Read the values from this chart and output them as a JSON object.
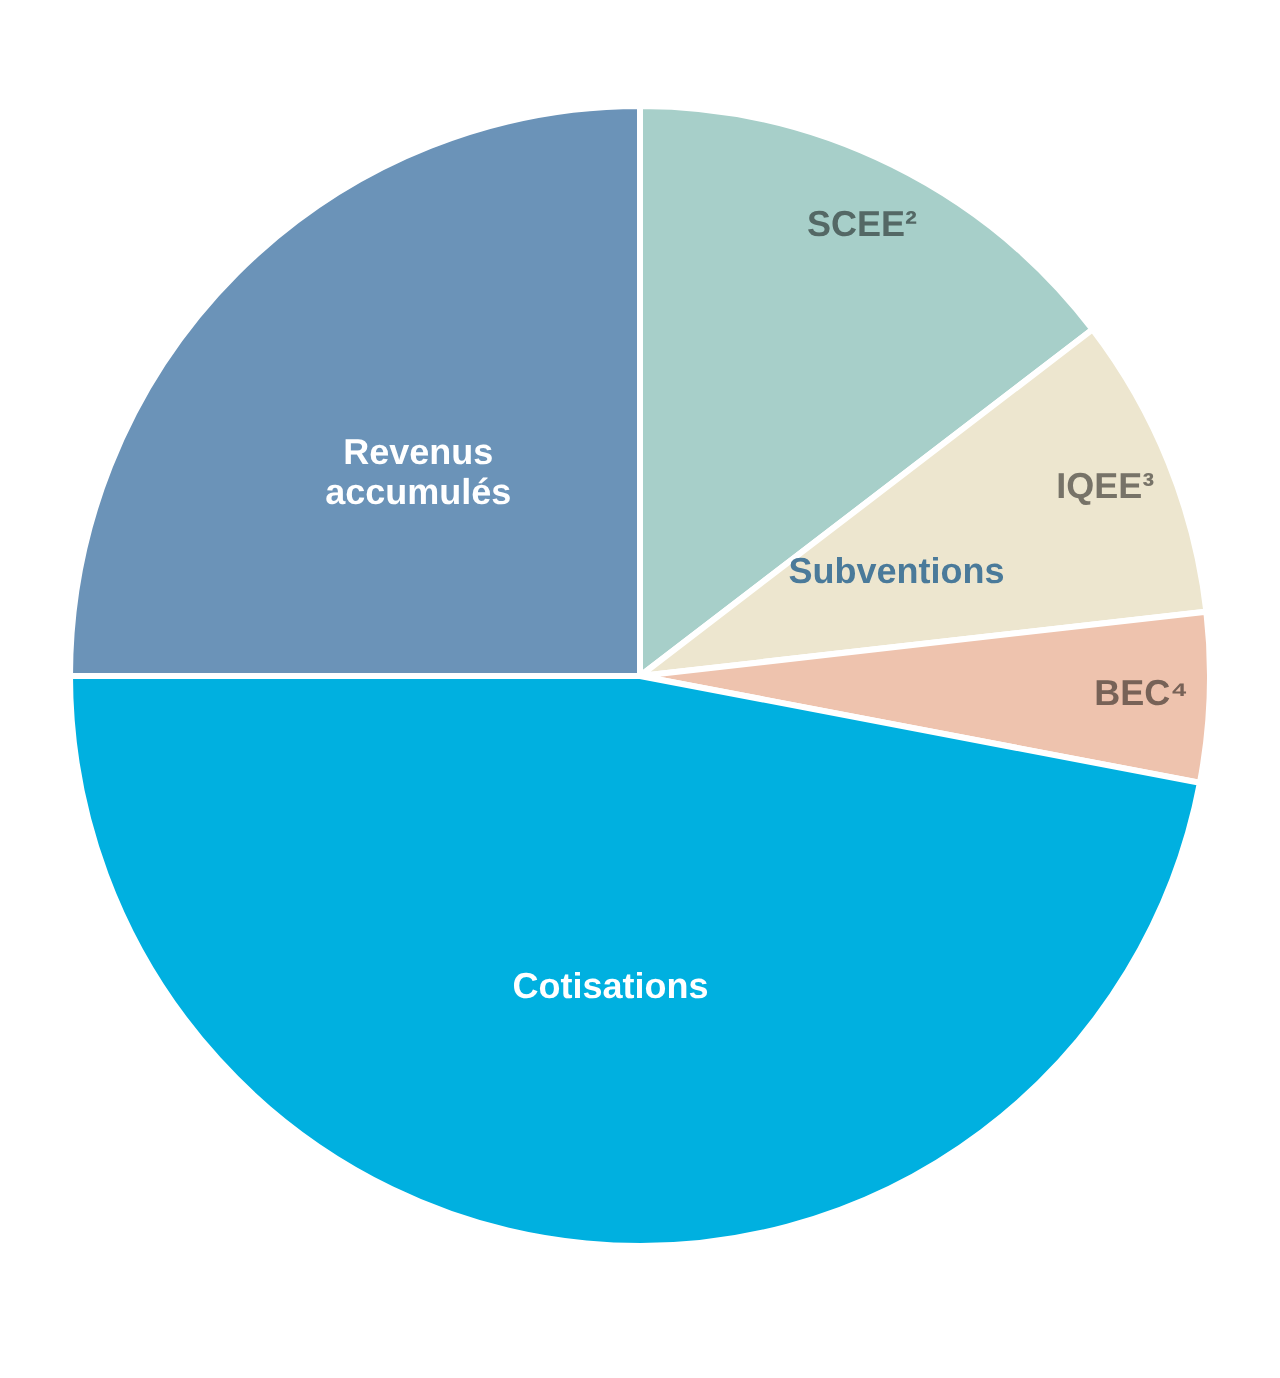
{
  "chart_data": {
    "type": "pie",
    "categories": [
      "SCEE²",
      "IQEE³",
      "BEC⁴",
      "Cotisations",
      "Revenus accumulés"
    ],
    "values": [
      14.6,
      8.6,
      4.8,
      47,
      25
    ],
    "colors": [
      "#a7cfc9",
      "#ede6cf",
      "#eec3ae",
      "#00b0e0",
      "#6b93b8"
    ],
    "annotations": [
      "Subventions"
    ]
  }
}
